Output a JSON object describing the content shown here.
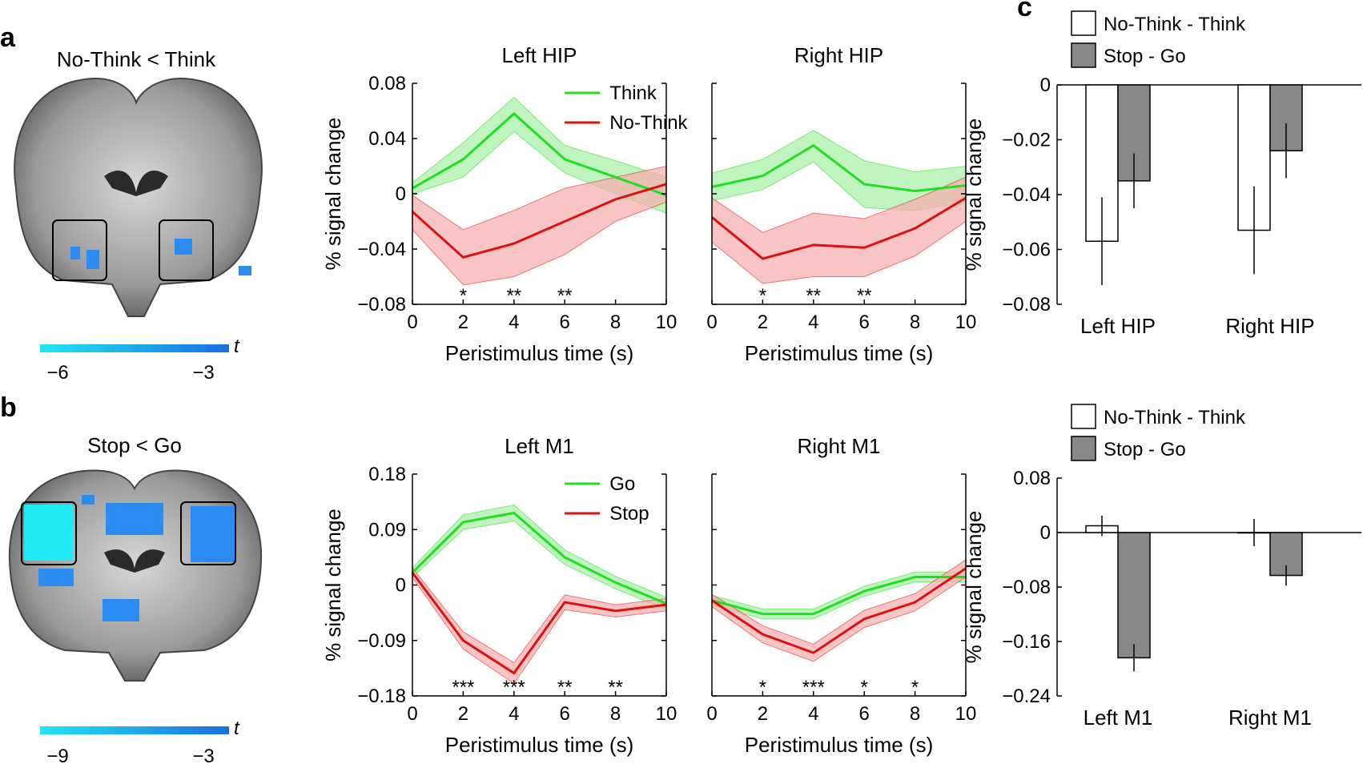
{
  "panels": {
    "a": {
      "letter": "a",
      "contrast": "No-Think < Think",
      "colorbar": {
        "label": "t",
        "min": "−6",
        "max": "−3"
      }
    },
    "b": {
      "letter": "b",
      "contrast": "Stop < Go",
      "colorbar": {
        "label": "t",
        "min": "−9",
        "max": "−3"
      }
    },
    "c": {
      "letter": "c"
    }
  },
  "colors": {
    "think_go": "#22dd22",
    "nothink_stop": "#dd1111",
    "think_go_band": "#aaf0aa",
    "nothink_stop_band": "#f5b0b0",
    "bar_nothink": "#ffffff",
    "bar_stop": "#888888",
    "colorbar_low": "#22e5f5",
    "colorbar_high": "#1a6fe0",
    "activation": "#2a8cf0",
    "activation_strong": "#22eaf5"
  },
  "chart_data": [
    {
      "id": "left-hip",
      "type": "line",
      "title": "Left HIP",
      "xlabel": "Peristimulus time (s)",
      "ylabel": "% signal change",
      "xlim": [
        0,
        10
      ],
      "ylim": [
        -0.08,
        0.08
      ],
      "xticks": [
        0,
        2,
        4,
        6,
        8,
        10
      ],
      "yticks": [
        -0.08,
        -0.04,
        0,
        0.04,
        0.08
      ],
      "ytick_labels": [
        "−0.08",
        "−0.04",
        "0",
        "0.04",
        "0.08"
      ],
      "x": [
        0,
        2,
        4,
        6,
        8,
        10
      ],
      "series": [
        {
          "name": "Think",
          "values": [
            0.004,
            0.025,
            0.058,
            0.025,
            0.012,
            -0.001
          ],
          "lower": [
            0.0,
            0.012,
            0.045,
            0.015,
            0.0,
            -0.014
          ],
          "upper": [
            0.008,
            0.037,
            0.07,
            0.035,
            0.024,
            0.012
          ]
        },
        {
          "name": "No-Think",
          "values": [
            -0.013,
            -0.046,
            -0.036,
            -0.02,
            -0.004,
            0.007
          ],
          "lower": [
            -0.026,
            -0.066,
            -0.06,
            -0.044,
            -0.02,
            -0.006
          ],
          "upper": [
            -0.001,
            -0.026,
            -0.012,
            0.004,
            0.012,
            0.02
          ]
        }
      ],
      "legend": [
        "Think",
        "No-Think"
      ],
      "legend_position": "top-right",
      "significance": [
        {
          "x": 2,
          "label": "*"
        },
        {
          "x": 4,
          "label": "**"
        },
        {
          "x": 6,
          "label": "**"
        }
      ]
    },
    {
      "id": "right-hip",
      "type": "line",
      "title": "Right HIP",
      "xlabel": "Peristimulus time (s)",
      "xlim": [
        0,
        10
      ],
      "ylim": [
        -0.08,
        0.08
      ],
      "xticks": [
        0,
        2,
        4,
        6,
        8,
        10
      ],
      "x": [
        0,
        2,
        4,
        6,
        8,
        10
      ],
      "series": [
        {
          "name": "Think",
          "values": [
            0.005,
            0.013,
            0.035,
            0.007,
            0.002,
            0.006
          ],
          "lower": [
            -0.005,
            0.003,
            0.023,
            -0.01,
            -0.012,
            -0.006
          ],
          "upper": [
            0.015,
            0.025,
            0.046,
            0.024,
            0.016,
            0.02
          ]
        },
        {
          "name": "No-Think",
          "values": [
            -0.017,
            -0.047,
            -0.037,
            -0.039,
            -0.025,
            -0.003
          ],
          "lower": [
            -0.035,
            -0.065,
            -0.06,
            -0.06,
            -0.045,
            -0.02
          ],
          "upper": [
            -0.003,
            -0.028,
            -0.014,
            -0.018,
            -0.004,
            0.012
          ]
        }
      ],
      "significance": [
        {
          "x": 2,
          "label": "*"
        },
        {
          "x": 4,
          "label": "**"
        },
        {
          "x": 6,
          "label": "**"
        }
      ]
    },
    {
      "id": "hip-differences",
      "type": "bar",
      "ylabel": "% signal change",
      "categories": [
        "Left HIP",
        "Right HIP"
      ],
      "ylim": [
        -0.08,
        0
      ],
      "yticks": [
        -0.08,
        -0.06,
        -0.04,
        -0.02,
        0
      ],
      "ytick_labels": [
        "−0.08",
        "−0.06",
        "−0.04",
        "−0.02",
        "0"
      ],
      "series": [
        {
          "name": "No-Think - Think",
          "values": [
            -0.057,
            -0.053
          ],
          "error": [
            0.016,
            0.016
          ]
        },
        {
          "name": "Stop - Go",
          "values": [
            -0.035,
            -0.024
          ],
          "error": [
            0.01,
            0.01
          ]
        }
      ],
      "legend": [
        "No-Think - Think",
        "Stop - Go"
      ],
      "legend_position": "top"
    },
    {
      "id": "left-m1",
      "type": "line",
      "title": "Left M1",
      "xlabel": "Peristimulus time (s)",
      "ylabel": "% signal change",
      "xlim": [
        0,
        10
      ],
      "ylim": [
        -0.18,
        0.18
      ],
      "xticks": [
        0,
        2,
        4,
        6,
        8,
        10
      ],
      "yticks": [
        -0.18,
        -0.09,
        0,
        0.09,
        0.18
      ],
      "ytick_labels": [
        "−0.18",
        "−0.09",
        "0",
        "0.09",
        "0.18"
      ],
      "x": [
        0,
        2,
        4,
        6,
        8,
        10
      ],
      "series": [
        {
          "name": "Go",
          "values": [
            0.02,
            0.102,
            0.117,
            0.045,
            0.004,
            -0.03
          ],
          "lower": [
            0.012,
            0.09,
            0.104,
            0.033,
            -0.006,
            -0.04
          ],
          "upper": [
            0.028,
            0.114,
            0.13,
            0.057,
            0.014,
            -0.02
          ]
        },
        {
          "name": "Stop",
          "values": [
            0.02,
            -0.09,
            -0.143,
            -0.028,
            -0.042,
            -0.032
          ],
          "lower": [
            0.012,
            -0.104,
            -0.16,
            -0.04,
            -0.052,
            -0.042
          ],
          "upper": [
            0.028,
            -0.076,
            -0.126,
            -0.016,
            -0.032,
            -0.022
          ]
        }
      ],
      "legend": [
        "Go",
        "Stop"
      ],
      "legend_position": "top-right",
      "significance": [
        {
          "x": 2,
          "label": "***"
        },
        {
          "x": 4,
          "label": "***"
        },
        {
          "x": 6,
          "label": "**"
        },
        {
          "x": 8,
          "label": "**"
        }
      ]
    },
    {
      "id": "right-m1",
      "type": "line",
      "title": "Right M1",
      "xlabel": "Peristimulus time (s)",
      "xlim": [
        0,
        10
      ],
      "ylim": [
        -0.18,
        0.18
      ],
      "xticks": [
        0,
        2,
        4,
        6,
        8,
        10
      ],
      "x": [
        0,
        2,
        4,
        6,
        8,
        10
      ],
      "series": [
        {
          "name": "Go",
          "values": [
            -0.025,
            -0.047,
            -0.047,
            -0.01,
            0.013,
            0.013
          ],
          "lower": [
            -0.033,
            -0.055,
            -0.055,
            -0.018,
            0.005,
            0.005
          ],
          "upper": [
            -0.017,
            -0.039,
            -0.039,
            -0.002,
            0.021,
            0.021
          ]
        },
        {
          "name": "Stop",
          "values": [
            -0.025,
            -0.08,
            -0.11,
            -0.055,
            -0.028,
            0.027
          ],
          "lower": [
            -0.035,
            -0.094,
            -0.124,
            -0.069,
            -0.042,
            0.013
          ],
          "upper": [
            -0.015,
            -0.066,
            -0.096,
            -0.041,
            -0.014,
            0.041
          ]
        }
      ],
      "significance": [
        {
          "x": 2,
          "label": "*"
        },
        {
          "x": 4,
          "label": "***"
        },
        {
          "x": 6,
          "label": "*"
        },
        {
          "x": 8,
          "label": "*"
        }
      ]
    },
    {
      "id": "m1-differences",
      "type": "bar",
      "ylabel": "% signal change",
      "categories": [
        "Left M1",
        "Right M1"
      ],
      "ylim": [
        -0.24,
        0.08
      ],
      "yticks": [
        -0.24,
        -0.16,
        -0.08,
        0,
        0.08
      ],
      "ytick_labels": [
        "−0.24",
        "−0.16",
        "−0.08",
        "0",
        "0.08"
      ],
      "series": [
        {
          "name": "No-Think - Think",
          "values": [
            0.01,
            0.0
          ],
          "error": [
            0.015,
            0.02
          ]
        },
        {
          "name": "Stop - Go",
          "values": [
            -0.184,
            -0.063
          ],
          "error": [
            0.02,
            0.015
          ]
        }
      ],
      "legend": [
        "No-Think - Think",
        "Stop - Go"
      ],
      "legend_position": "top"
    }
  ]
}
